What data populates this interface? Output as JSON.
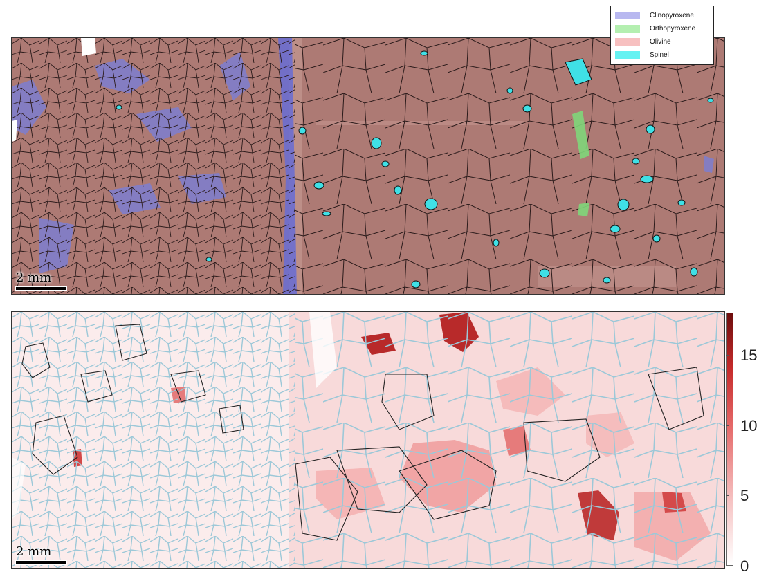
{
  "legend": {
    "items": [
      {
        "label": "Clinopyroxene",
        "color": "#b8b8f0"
      },
      {
        "label": "Orthopyroxene",
        "color": "#b4efb0"
      },
      {
        "label": "Olivine",
        "color": "#f7c0c0"
      },
      {
        "label": "Spinel",
        "color": "#66f2f2"
      }
    ]
  },
  "phase_map": {
    "scale_bar": "2 mm"
  },
  "kam_map": {
    "scale_bar": "2 mm",
    "colorbar": {
      "min": 0,
      "max": 18,
      "ticks": [
        "0",
        "5",
        "10",
        "15"
      ]
    }
  }
}
